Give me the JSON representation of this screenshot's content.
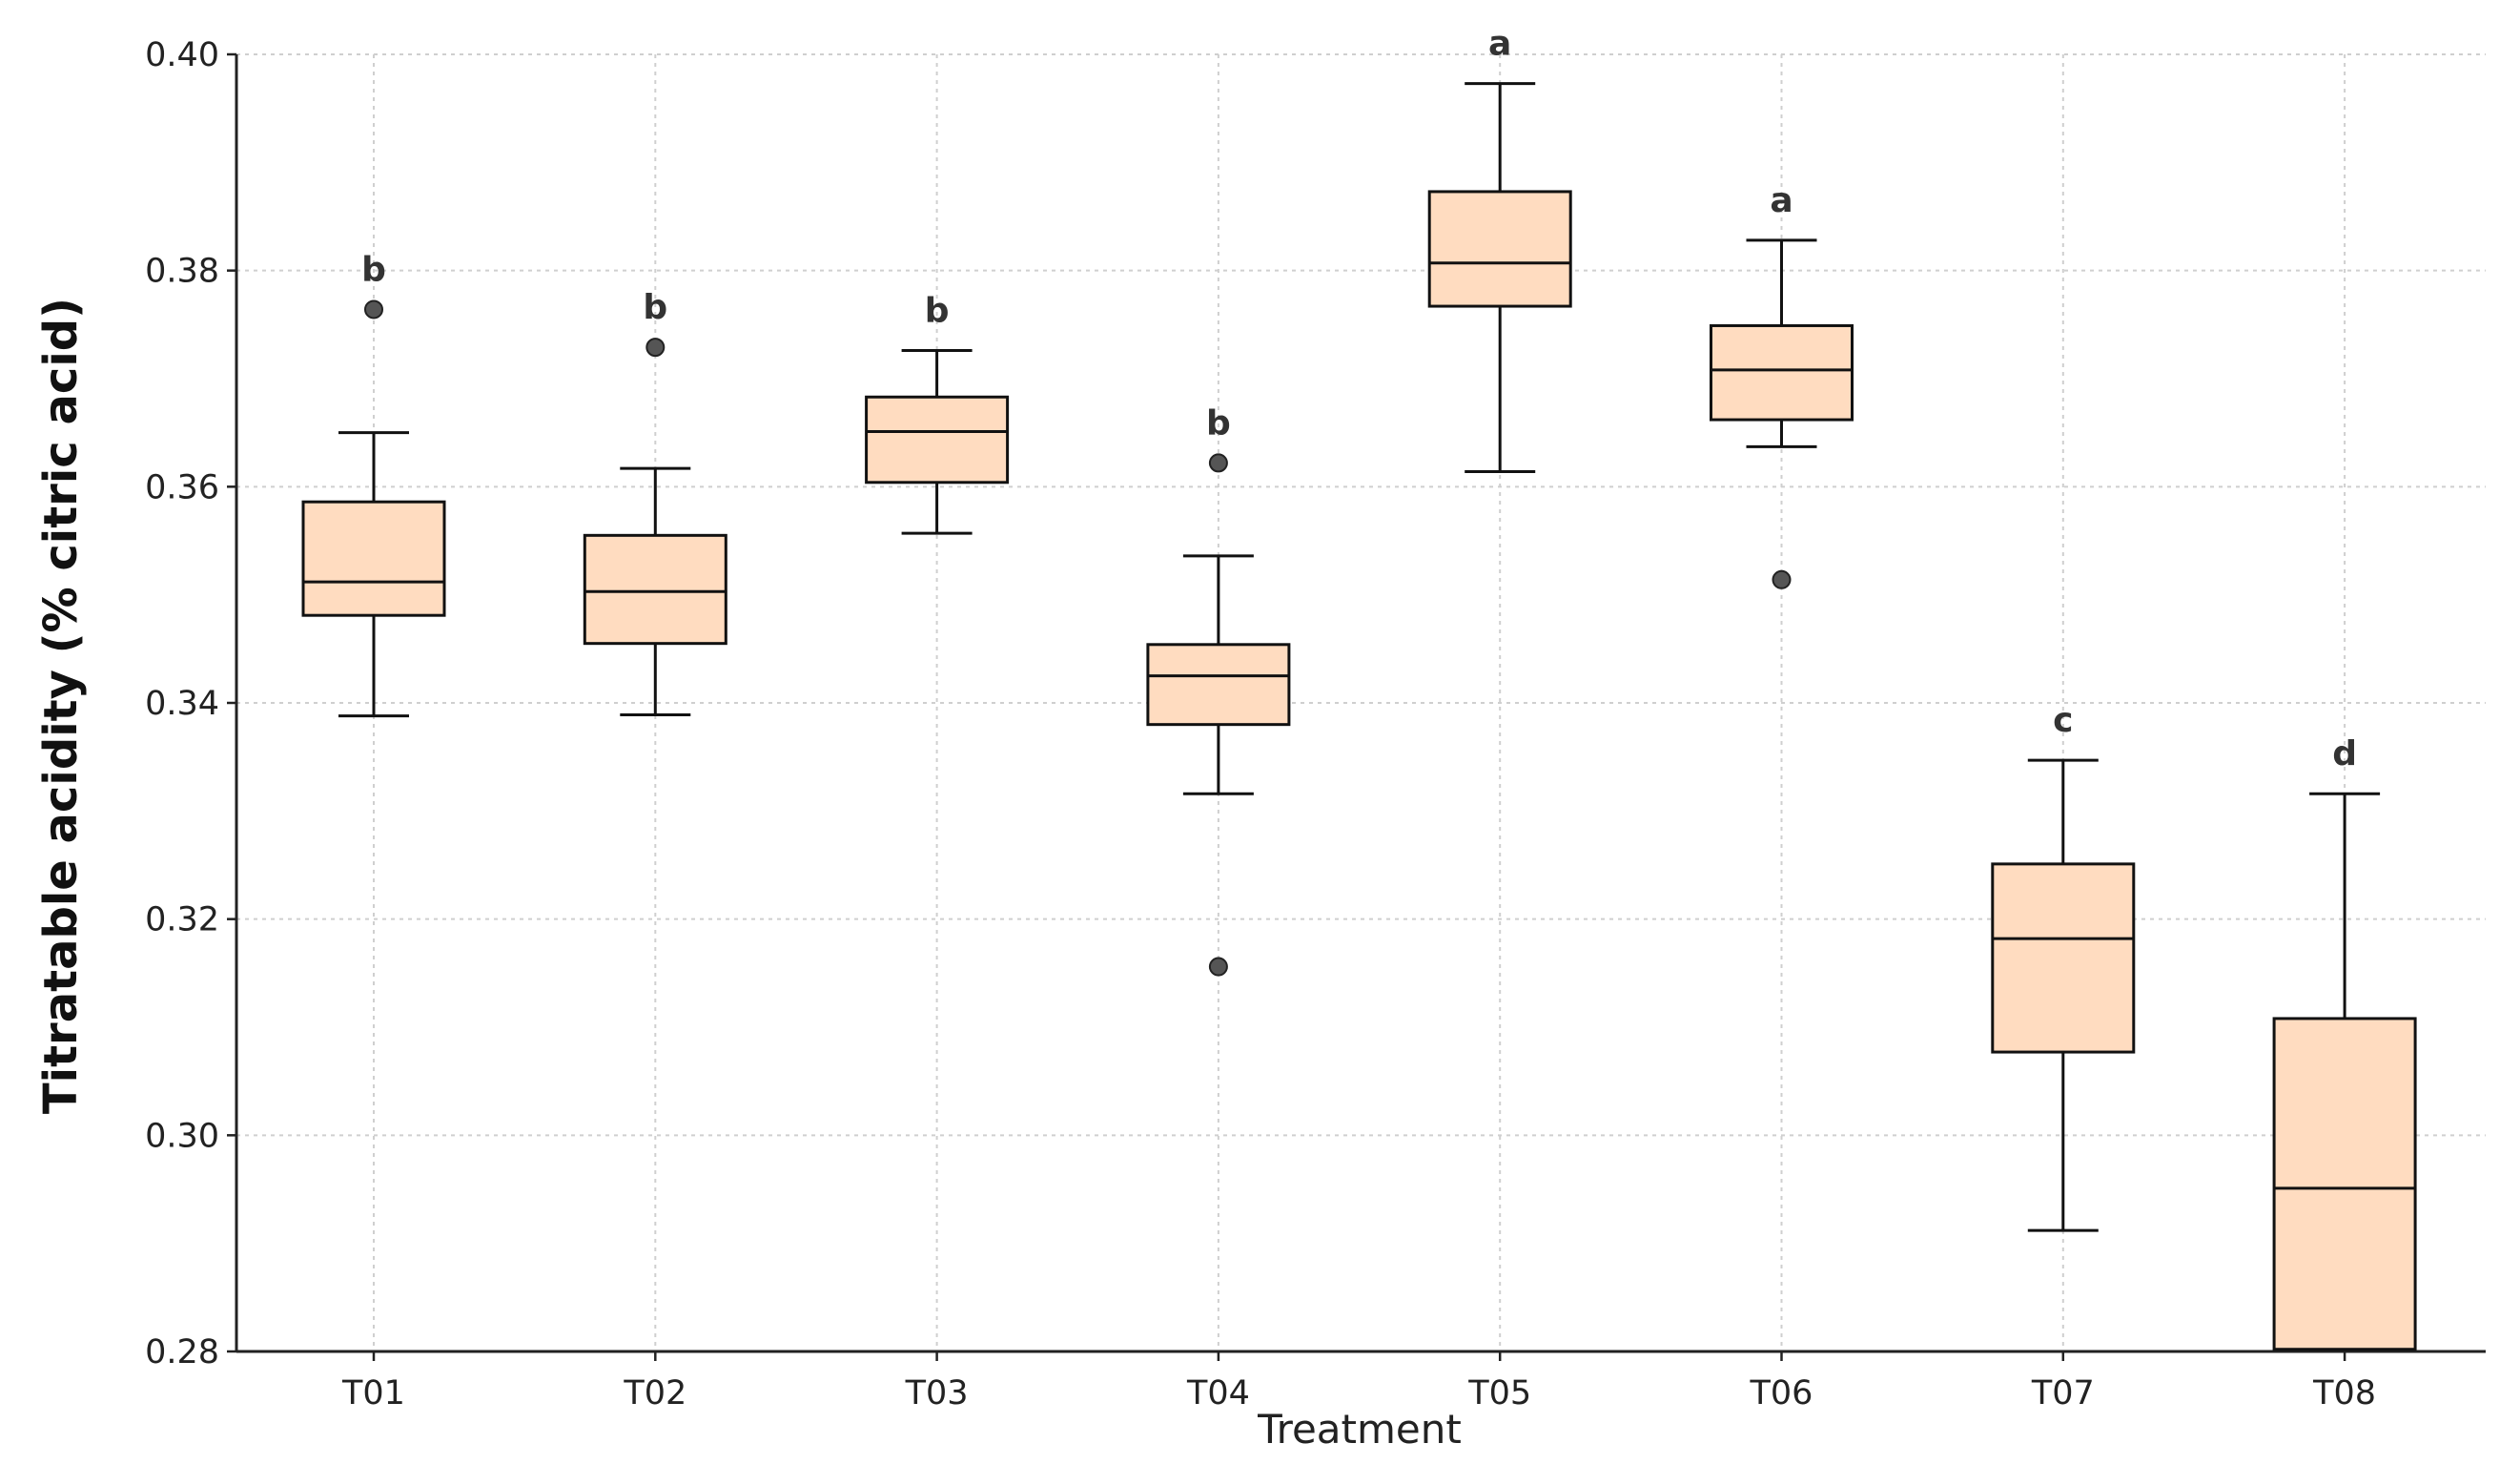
{
  "chart_data": {
    "type": "box",
    "title": "",
    "xlabel": "Treatment",
    "ylabel": "Titratable acidity (% citric acid)",
    "ylim": [
      0.28,
      0.4
    ],
    "yticks": [
      0.28,
      0.3,
      0.32,
      0.34,
      0.36,
      0.38,
      0.4
    ],
    "ytick_labels": [
      "0.28",
      "0.30",
      "0.32",
      "0.34",
      "0.36",
      "0.38",
      "0.40"
    ],
    "grid": true,
    "box_color": "#ffdcc0",
    "edge_color": "#111111",
    "outlier_color": "#555555",
    "categories": [
      "T01",
      "T02",
      "T03",
      "T04",
      "T05",
      "T06",
      "T07",
      "T08"
    ],
    "boxes": [
      {
        "category": "T01",
        "whisker_low": 0.3388,
        "q1": 0.3481,
        "median": 0.3512,
        "q3": 0.3586,
        "whisker_high": 0.365,
        "outliers": [
          0.3764
        ],
        "letter": "b"
      },
      {
        "category": "T02",
        "whisker_low": 0.3389,
        "q1": 0.3455,
        "median": 0.3503,
        "q3": 0.3555,
        "whisker_high": 0.3617,
        "outliers": [
          0.3729
        ],
        "letter": "b"
      },
      {
        "category": "T03",
        "whisker_low": 0.3557,
        "q1": 0.3604,
        "median": 0.3651,
        "q3": 0.3683,
        "whisker_high": 0.3726,
        "outliers": [],
        "letter": "b"
      },
      {
        "category": "T04",
        "whisker_low": 0.3316,
        "q1": 0.338,
        "median": 0.3425,
        "q3": 0.3454,
        "whisker_high": 0.3536,
        "outliers": [
          0.3622,
          0.3156
        ],
        "letter": "b"
      },
      {
        "category": "T05",
        "whisker_low": 0.3614,
        "q1": 0.3767,
        "median": 0.3807,
        "q3": 0.3873,
        "whisker_high": 0.3973,
        "outliers": [],
        "letter": "a"
      },
      {
        "category": "T06",
        "whisker_low": 0.3637,
        "q1": 0.3662,
        "median": 0.3708,
        "q3": 0.3749,
        "whisker_high": 0.3828,
        "outliers": [
          0.3514
        ],
        "letter": "a"
      },
      {
        "category": "T07",
        "whisker_low": 0.2912,
        "q1": 0.3077,
        "median": 0.3182,
        "q3": 0.3251,
        "whisker_high": 0.3347,
        "outliers": [],
        "letter": "c"
      },
      {
        "category": "T08",
        "whisker_low": 0.2802,
        "q1": 0.2802,
        "median": 0.2951,
        "q3": 0.3108,
        "whisker_high": 0.3316,
        "outliers": [],
        "letter": "d"
      }
    ]
  }
}
